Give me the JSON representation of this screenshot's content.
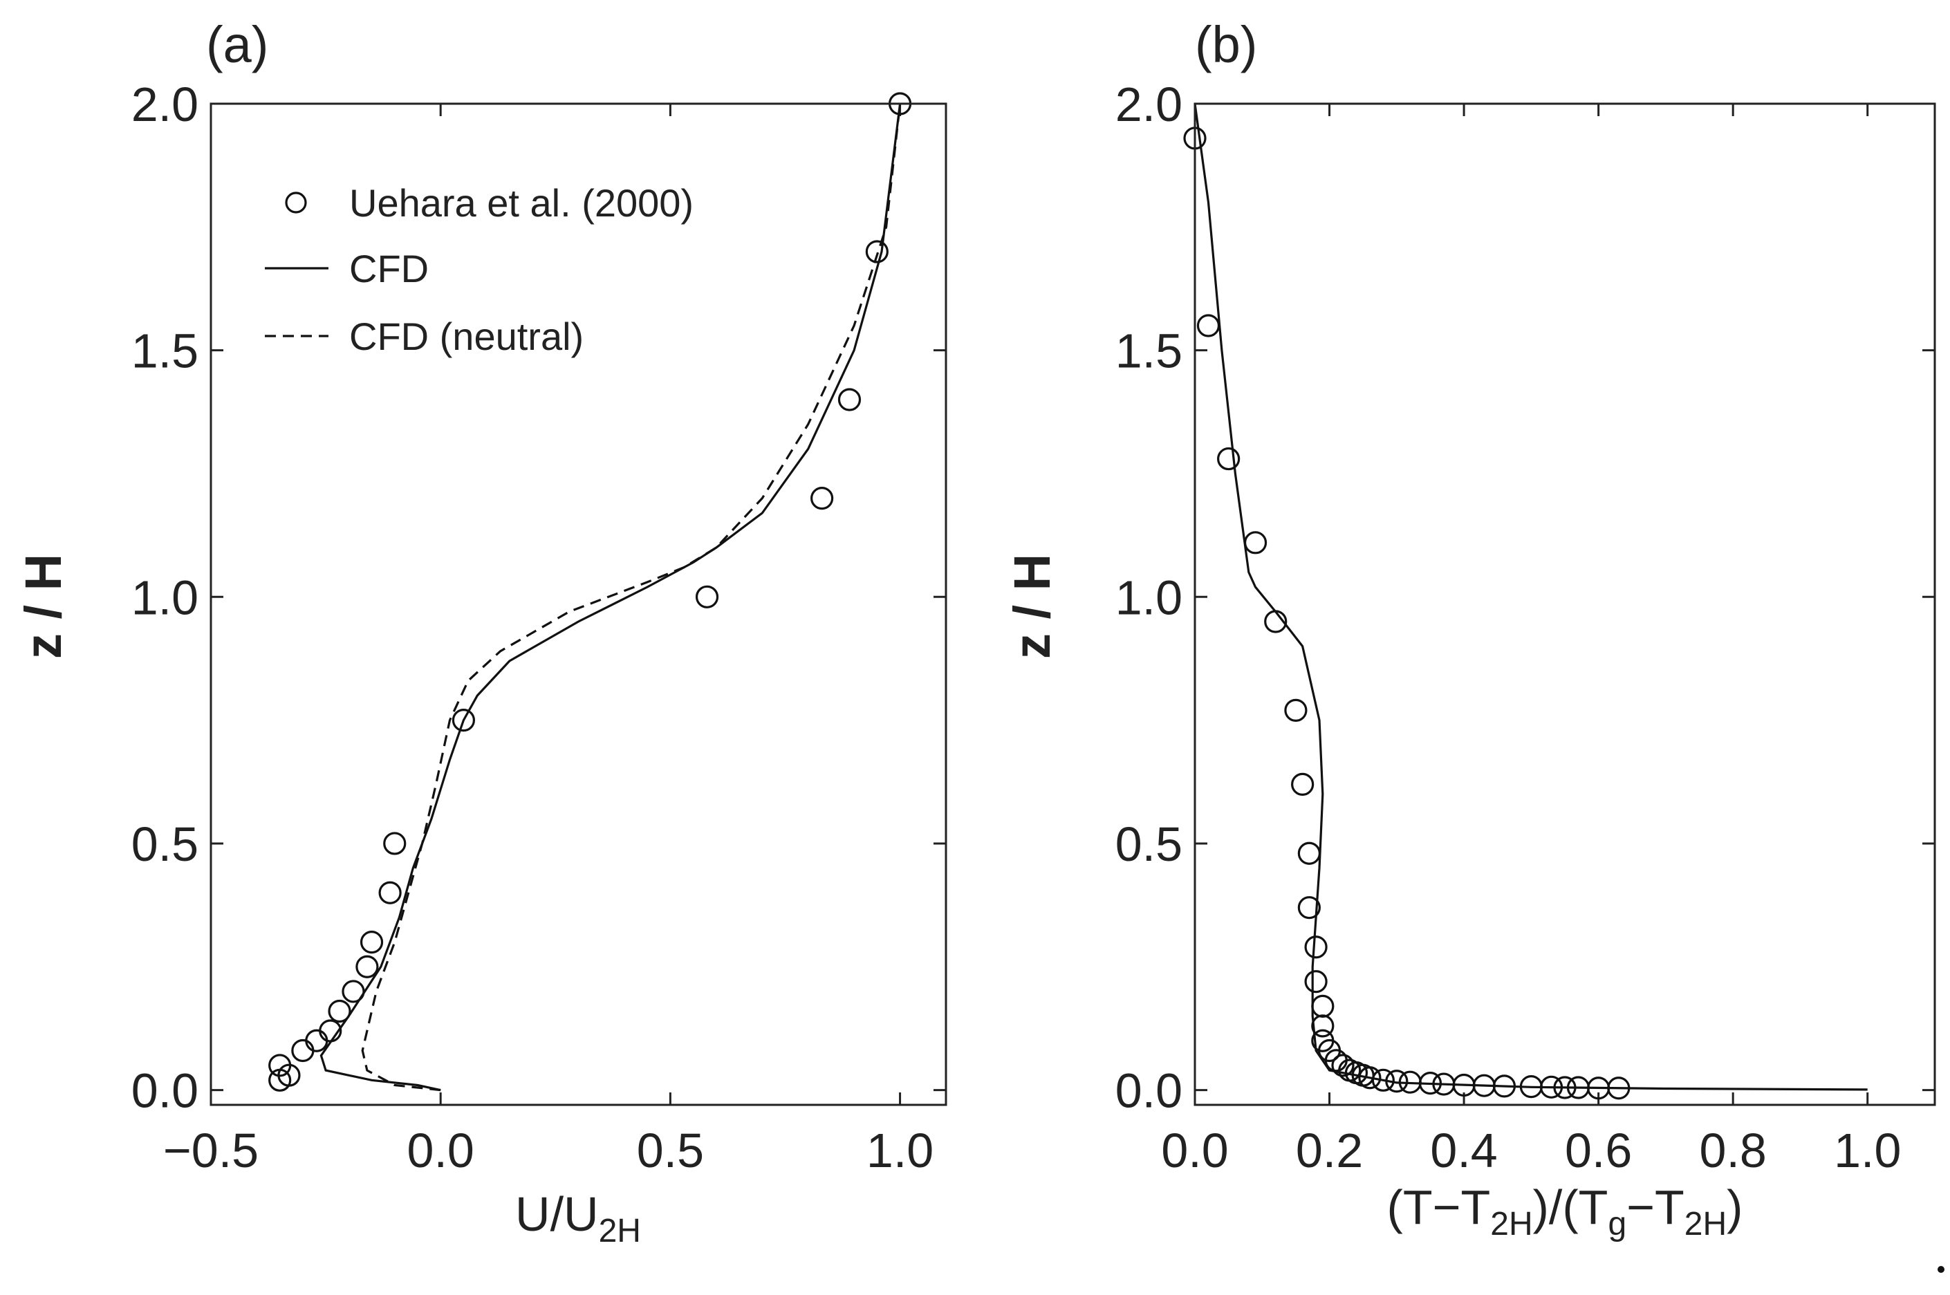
{
  "chart_data": [
    {
      "type": "line",
      "panel_label": "(a)",
      "xlabel": "U/U",
      "xlabel_sub": "2H",
      "ylabel": "z / H",
      "xlim": [
        -0.5,
        1.1
      ],
      "ylim": [
        -0.03,
        2.0
      ],
      "xticks": [
        -0.5,
        0.0,
        0.5,
        1.0
      ],
      "xtick_labels": [
        "−0.5",
        "0.0",
        "0.5",
        "1.0"
      ],
      "yticks": [
        0.0,
        0.5,
        1.0,
        1.5,
        2.0
      ],
      "ytick_labels": [
        "0.0",
        "0.5",
        "1.0",
        "1.5",
        "2.0"
      ],
      "legend": {
        "position": "top-left",
        "entries": [
          {
            "label": "Uehara et al. (2000)",
            "style": "circle"
          },
          {
            "label": "CFD",
            "style": "solid"
          },
          {
            "label": "CFD (neutral)",
            "style": "dashed"
          }
        ]
      },
      "series": [
        {
          "name": "Uehara et al. (2000)",
          "style": "circle",
          "x": [
            -0.35,
            -0.35,
            -0.33,
            -0.3,
            -0.27,
            -0.24,
            -0.22,
            -0.19,
            -0.16,
            -0.15,
            -0.11,
            -0.1,
            0.05,
            0.58,
            0.83,
            0.89,
            0.95,
            1.0
          ],
          "y": [
            0.05,
            0.02,
            0.03,
            0.08,
            0.1,
            0.12,
            0.16,
            0.2,
            0.25,
            0.3,
            0.4,
            0.5,
            0.75,
            1.0,
            1.2,
            1.4,
            1.7,
            2.0
          ]
        },
        {
          "name": "CFD",
          "style": "solid",
          "x": [
            0.0,
            -0.05,
            -0.15,
            -0.25,
            -0.26,
            -0.2,
            -0.13,
            -0.09,
            -0.06,
            -0.02,
            0.02,
            0.05,
            0.08,
            0.15,
            0.3,
            0.45,
            0.55,
            0.6,
            0.7,
            0.8,
            0.9,
            0.96,
            1.0
          ],
          "y": [
            0.0,
            0.01,
            0.02,
            0.04,
            0.07,
            0.15,
            0.25,
            0.35,
            0.45,
            0.55,
            0.67,
            0.75,
            0.8,
            0.87,
            0.95,
            1.02,
            1.07,
            1.1,
            1.17,
            1.3,
            1.5,
            1.7,
            2.0
          ]
        },
        {
          "name": "CFD (neutral)",
          "style": "dashed",
          "x": [
            0.0,
            -0.1,
            -0.16,
            -0.17,
            -0.14,
            -0.1,
            -0.07,
            -0.04,
            -0.01,
            0.02,
            0.06,
            0.13,
            0.28,
            0.45,
            0.53,
            0.6,
            0.7,
            0.8,
            0.9,
            0.97,
            1.0
          ],
          "y": [
            0.0,
            0.01,
            0.04,
            0.08,
            0.2,
            0.3,
            0.4,
            0.5,
            0.62,
            0.75,
            0.83,
            0.89,
            0.97,
            1.03,
            1.06,
            1.1,
            1.2,
            1.35,
            1.55,
            1.75,
            2.0
          ]
        }
      ]
    },
    {
      "type": "line",
      "panel_label": "(b)",
      "xlabel_parts": [
        "(T−T",
        "2H",
        ")/(T",
        "g",
        "−T",
        "2H",
        ")"
      ],
      "ylabel": "z / H",
      "xlim": [
        0.0,
        1.1
      ],
      "ylim": [
        -0.03,
        2.0
      ],
      "xticks": [
        0.0,
        0.2,
        0.4,
        0.6,
        0.8,
        1.0
      ],
      "xtick_labels": [
        "0.0",
        "0.2",
        "0.4",
        "0.6",
        "0.8",
        "1.0"
      ],
      "yticks": [
        0.0,
        0.5,
        1.0,
        1.5,
        2.0
      ],
      "ytick_labels": [
        "0.0",
        "0.5",
        "1.0",
        "1.5",
        "2.0"
      ],
      "series": [
        {
          "name": "Uehara et al. (2000)",
          "style": "circle",
          "x": [
            0.0,
            0.02,
            0.05,
            0.09,
            0.12,
            0.15,
            0.16,
            0.17,
            0.17,
            0.18,
            0.18,
            0.19,
            0.19,
            0.19,
            0.2,
            0.21,
            0.22,
            0.23,
            0.24,
            0.25,
            0.26,
            0.28,
            0.3,
            0.32,
            0.35,
            0.37,
            0.4,
            0.43,
            0.46,
            0.5,
            0.53,
            0.55,
            0.57,
            0.6,
            0.63
          ],
          "y": [
            1.93,
            1.55,
            1.28,
            1.11,
            0.95,
            0.77,
            0.62,
            0.48,
            0.37,
            0.29,
            0.22,
            0.17,
            0.13,
            0.1,
            0.08,
            0.06,
            0.05,
            0.04,
            0.035,
            0.03,
            0.025,
            0.02,
            0.018,
            0.016,
            0.014,
            0.012,
            0.01,
            0.009,
            0.008,
            0.007,
            0.006,
            0.005,
            0.005,
            0.004,
            0.004
          ]
        },
        {
          "name": "CFD",
          "style": "solid",
          "x": [
            0.0,
            0.02,
            0.04,
            0.06,
            0.08,
            0.09,
            0.12,
            0.16,
            0.185,
            0.19,
            0.185,
            0.18,
            0.175,
            0.175,
            0.18,
            0.2,
            0.3,
            0.5,
            0.7,
            1.0
          ],
          "y": [
            2.0,
            1.8,
            1.5,
            1.25,
            1.05,
            1.02,
            0.97,
            0.9,
            0.75,
            0.6,
            0.45,
            0.35,
            0.25,
            0.15,
            0.08,
            0.04,
            0.015,
            0.006,
            0.003,
            0.001
          ]
        }
      ]
    }
  ]
}
